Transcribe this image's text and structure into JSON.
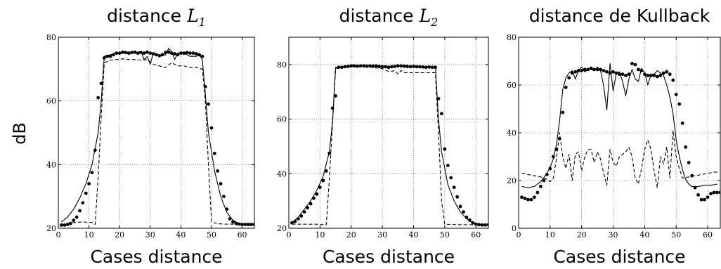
{
  "figure": {
    "ylabel": "dB"
  },
  "chart_data": [
    {
      "type": "line",
      "title": "distance",
      "title_math": "L",
      "title_sub": "1",
      "xlabel": "Cases distance",
      "ylabel": "dB",
      "xlim": [
        0,
        64
      ],
      "ylim": [
        20,
        80
      ],
      "xticks": [
        0,
        10,
        20,
        30,
        40,
        50,
        60
      ],
      "yticks": [
        20,
        40,
        60,
        80
      ],
      "grid": true,
      "series": [
        {
          "style": "solid",
          "color": "#000000",
          "x": [
            1,
            3,
            5,
            7,
            9,
            11,
            13,
            14,
            15,
            17,
            19,
            21,
            23,
            25,
            27,
            28,
            29,
            30,
            31,
            33,
            35,
            36,
            37,
            38,
            39,
            41,
            43,
            45,
            46,
            47,
            48,
            49,
            51,
            53,
            55,
            57,
            59,
            61,
            63
          ],
          "y": [
            22,
            23.5,
            26,
            29.5,
            34,
            40,
            50,
            60,
            74,
            74.5,
            75,
            75.3,
            75.3,
            75.2,
            75.5,
            73,
            74,
            71.5,
            75,
            74,
            74.5,
            76.5,
            75.5,
            73,
            75,
            75,
            74,
            74,
            74.5,
            73,
            62,
            50,
            38,
            30,
            25,
            22.5,
            21.5,
            21.2,
            21.2
          ]
        },
        {
          "style": "dashed",
          "color": "#000000",
          "x": [
            1,
            3,
            5,
            8,
            11,
            12,
            13,
            14,
            15,
            17,
            19,
            21,
            23,
            25,
            27,
            29,
            31,
            33,
            35,
            37,
            39,
            41,
            43,
            45,
            47,
            48,
            49,
            50,
            52,
            55,
            58,
            61,
            63
          ],
          "y": [
            21.2,
            21.5,
            21.8,
            22,
            21.8,
            21.2,
            36,
            55,
            72,
            72.8,
            73,
            73.2,
            73,
            73,
            72.8,
            73,
            71.5,
            71,
            70.5,
            72,
            71,
            71,
            70.5,
            70.5,
            70,
            60,
            40,
            22,
            21.4,
            21.3,
            21.3,
            21.3,
            21.3
          ]
        },
        {
          "style": "dots",
          "color": "#000000",
          "x": [
            1,
            2,
            3,
            4,
            5,
            6,
            7,
            8,
            9,
            10,
            11,
            12,
            13,
            14,
            15,
            16,
            17,
            18,
            19,
            20,
            21,
            22,
            23,
            24,
            25,
            26,
            27,
            28,
            29,
            30,
            31,
            32,
            33,
            34,
            35,
            36,
            37,
            38,
            39,
            40,
            41,
            42,
            43,
            44,
            45,
            46,
            47,
            48,
            49,
            50,
            51,
            52,
            53,
            54,
            55,
            56,
            57,
            58,
            59,
            60,
            61,
            62,
            63,
            64
          ],
          "y": [
            21,
            21,
            21.2,
            21.5,
            22.5,
            23.5,
            25.5,
            28,
            31,
            34,
            37.5,
            44.5,
            61,
            65.5,
            73.5,
            74,
            74,
            74.5,
            75,
            75,
            75.3,
            75.2,
            75,
            75.2,
            75.3,
            75,
            75.2,
            75,
            75.3,
            75,
            74.8,
            74.5,
            74.2,
            74.5,
            75.2,
            75.3,
            75,
            74.8,
            74.5,
            75,
            75,
            75.2,
            75,
            75,
            74.8,
            74.5,
            74,
            64.5,
            59,
            51.5,
            43.5,
            38,
            34,
            30,
            26,
            23,
            22,
            21.5,
            21.3,
            21.2,
            21.2,
            21.2,
            21.2,
            21.2
          ]
        }
      ]
    },
    {
      "type": "line",
      "title": "distance",
      "title_math": "L",
      "title_sub": "2",
      "xlabel": "Cases distance",
      "xlim": [
        0,
        64
      ],
      "ylim": [
        20,
        90
      ],
      "xticks": [
        0,
        10,
        20,
        30,
        40,
        50,
        60
      ],
      "yticks": [
        20,
        40,
        60,
        80
      ],
      "grid": true,
      "series": [
        {
          "style": "solid",
          "color": "#000000",
          "x": [
            1,
            3,
            5,
            7,
            9,
            11,
            13,
            14,
            15,
            17,
            20,
            25,
            30,
            33,
            35,
            37,
            40,
            43,
            45,
            47,
            48,
            49,
            51,
            53,
            55,
            57,
            59,
            61,
            63
          ],
          "y": [
            22,
            24,
            27,
            30,
            34,
            39,
            48,
            59,
            79,
            79.2,
            79.5,
            79.6,
            79.3,
            79,
            79.6,
            79.4,
            79.3,
            79.2,
            79.2,
            79,
            60,
            48,
            36,
            30,
            26,
            23.5,
            22,
            21.5,
            21.3
          ]
        },
        {
          "style": "dashed",
          "color": "#000000",
          "x": [
            1,
            5,
            9,
            11,
            12,
            13,
            14,
            15,
            17,
            20,
            25,
            30,
            32,
            33,
            34,
            35,
            36,
            37,
            39,
            41,
            43,
            45,
            47,
            48,
            49,
            50,
            52,
            55,
            60,
            63
          ],
          "y": [
            21.5,
            21.5,
            21.5,
            21.3,
            21.2,
            38,
            58,
            78.5,
            79,
            79.2,
            79.2,
            78.5,
            77.5,
            77.5,
            77.8,
            76.5,
            77.8,
            77,
            77,
            77,
            77,
            77,
            77,
            55,
            30,
            21.5,
            21.4,
            21.3,
            21.3,
            21.3
          ]
        },
        {
          "style": "dots",
          "color": "#000000",
          "x": [
            1,
            2,
            3,
            4,
            5,
            6,
            7,
            8,
            9,
            10,
            11,
            12,
            13,
            14,
            15,
            16,
            17,
            18,
            19,
            20,
            21,
            22,
            23,
            24,
            25,
            26,
            27,
            28,
            29,
            30,
            31,
            32,
            33,
            34,
            35,
            36,
            37,
            38,
            39,
            40,
            41,
            42,
            43,
            44,
            45,
            46,
            47,
            48,
            49,
            50,
            51,
            52,
            53,
            54,
            55,
            56,
            57,
            58,
            59,
            60,
            61,
            62,
            63,
            64
          ],
          "y": [
            22,
            22.5,
            23.5,
            24.5,
            26,
            27.5,
            29,
            31,
            32.5,
            35,
            37.5,
            41,
            47.5,
            64,
            68.5,
            79,
            79,
            79.2,
            79.3,
            79.5,
            79.5,
            79.4,
            79.5,
            79.5,
            79.4,
            79.5,
            79.4,
            79.5,
            79.3,
            79.2,
            79.2,
            79,
            79.2,
            79.3,
            79.5,
            79.5,
            79.4,
            79.3,
            79.2,
            79.3,
            79.2,
            79.2,
            79.1,
            79,
            79.1,
            79,
            79,
            67.5,
            62,
            49,
            43,
            38.5,
            35,
            31.5,
            28,
            26,
            24,
            23,
            22,
            21.5,
            21.3,
            21.2,
            21.2,
            21.3
          ]
        }
      ]
    },
    {
      "type": "line",
      "title": "distance de Kullback",
      "xlabel": "Cases distance",
      "xlim": [
        0,
        64
      ],
      "ylim": [
        0,
        80
      ],
      "xticks": [
        0,
        10,
        20,
        30,
        40,
        50,
        60
      ],
      "yticks": [
        0,
        20,
        40,
        60,
        80
      ],
      "grid": true,
      "series": [
        {
          "style": "solid",
          "color": "#000000",
          "x": [
            1,
            3,
            5,
            7,
            9,
            10,
            11,
            12,
            13,
            14,
            15,
            16,
            17,
            18,
            19,
            20,
            21,
            22,
            23,
            24,
            25,
            26,
            27,
            28,
            29,
            30,
            31,
            32,
            33,
            34,
            35,
            36,
            37,
            38,
            39,
            40,
            41,
            42,
            43,
            44,
            45,
            46,
            47,
            48,
            49,
            50,
            51,
            52,
            53,
            54,
            55,
            57,
            59,
            61,
            63
          ],
          "y": [
            17.5,
            17,
            17.5,
            19.5,
            23,
            25.5,
            29,
            35,
            45,
            58,
            63,
            65,
            66,
            62.5,
            66,
            67.5,
            65.5,
            66.5,
            66.5,
            66,
            67.5,
            66,
            59.5,
            49.5,
            69,
            57.5,
            65,
            65.5,
            61.5,
            55.5,
            62.5,
            66.5,
            62.5,
            61.5,
            67,
            65,
            60,
            64.5,
            64.5,
            66,
            65,
            64,
            60,
            55,
            48,
            37,
            30,
            24.5,
            20.5,
            18.5,
            17.5,
            17.5,
            18,
            18,
            18.5
          ]
        },
        {
          "style": "dashed",
          "color": "#000000",
          "x": [
            1,
            3,
            5,
            7,
            9,
            10,
            11,
            12,
            13,
            14,
            15,
            16,
            17,
            18,
            19,
            20,
            21,
            22,
            23,
            24,
            25,
            26,
            27,
            28,
            29,
            30,
            31,
            32,
            33,
            34,
            35,
            36,
            37,
            38,
            39,
            40,
            41,
            42,
            43,
            44,
            45,
            46,
            47,
            48,
            49,
            50,
            51,
            52,
            54,
            56,
            58,
            60,
            62,
            63
          ],
          "y": [
            23,
            22.5,
            22,
            21.5,
            20.5,
            19.5,
            21,
            29,
            40,
            30,
            25,
            31,
            20,
            31,
            32,
            24,
            30,
            33,
            33,
            27.5,
            32,
            29,
            23,
            18,
            33,
            27.5,
            26,
            30,
            31,
            32,
            34,
            30,
            21,
            18.5,
            25,
            33,
            37,
            33,
            24,
            17,
            30,
            27,
            34,
            21,
            41,
            30,
            25,
            21,
            21.5,
            22,
            22.5,
            23,
            23.5,
            23.5
          ]
        },
        {
          "style": "dots",
          "color": "#000000",
          "x": [
            1,
            2,
            3,
            4,
            5,
            6,
            7,
            8,
            9,
            10,
            11,
            12,
            13,
            14,
            15,
            16,
            17,
            18,
            19,
            20,
            21,
            22,
            23,
            24,
            25,
            26,
            27,
            28,
            29,
            30,
            31,
            32,
            33,
            34,
            35,
            36,
            37,
            38,
            39,
            40,
            41,
            42,
            43,
            44,
            45,
            46,
            47,
            48,
            49,
            50,
            51,
            52,
            53,
            54,
            55,
            56,
            57,
            58,
            59,
            60,
            61,
            62,
            63,
            64
          ],
          "y": [
            13,
            12.5,
            12,
            12,
            13,
            15,
            17.5,
            20,
            22.5,
            25,
            30,
            33,
            37.5,
            48.5,
            59,
            63,
            65,
            65.5,
            66,
            66,
            66.5,
            66.5,
            67,
            66.5,
            66.5,
            66.5,
            66,
            65.5,
            65,
            65.5,
            65,
            64.5,
            64.5,
            64,
            64.5,
            69,
            68.5,
            66.5,
            66,
            64.5,
            64,
            64,
            64,
            63.5,
            64,
            65,
            65.5,
            64.5,
            62,
            56,
            52,
            44,
            34,
            27.5,
            22,
            17,
            14,
            12,
            12,
            13,
            14.5,
            15,
            15,
            15
          ]
        }
      ]
    }
  ]
}
